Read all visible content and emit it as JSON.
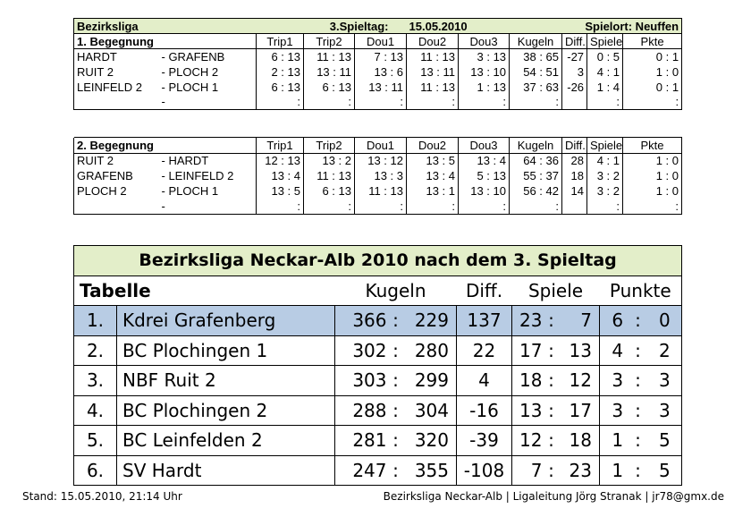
{
  "header": {
    "league": "Bezirksliga",
    "matchday": "3.Spieltag:",
    "date": "15.05.2010",
    "venue": "Spielort: Neuffen"
  },
  "columns": [
    "Trip1",
    "Trip2",
    "Dou1",
    "Dou2",
    "Dou3",
    "Kugeln",
    "Diff.",
    "Spiele",
    "Pkte"
  ],
  "matches": [
    {
      "title": "1. Begegnung",
      "rows": [
        {
          "home": "HARDT",
          "away": "- GRAFENB",
          "trip1": "6 : 13",
          "trip2": "11 : 13",
          "dou1": "7 : 13",
          "dou2": "11 : 13",
          "dou3": "3 : 13",
          "kugeln": "38 : 65",
          "diff": "-27",
          "spiele": "0 : 5",
          "pkte": "0 : 1"
        },
        {
          "home": "RUIT 2",
          "away": "- PLOCH 2",
          "trip1": "2 : 13",
          "trip2": "13 : 11",
          "dou1": "13 : 6",
          "dou2": "13 : 11",
          "dou3": "13 : 10",
          "kugeln": "54 : 51",
          "diff": "3",
          "spiele": "4 : 1",
          "pkte": "1 : 0"
        },
        {
          "home": "LEINFELD 2",
          "away": "- PLOCH 1",
          "trip1": "6 : 13",
          "trip2": "6 : 13",
          "dou1": "13 : 11",
          "dou2": "11 : 13",
          "dou3": "1 : 13",
          "kugeln": "37 : 63",
          "diff": "-26",
          "spiele": "1 : 4",
          "pkte": "0 : 1"
        },
        {
          "home": "",
          "away": "-",
          "trip1": ":",
          "trip2": ":",
          "dou1": ":",
          "dou2": ":",
          "dou3": ":",
          "kugeln": ":",
          "diff": "",
          "spiele": ":",
          "pkte": ":"
        }
      ]
    },
    {
      "title": "2. Begegnung",
      "rows": [
        {
          "home": "RUIT 2",
          "away": "- HARDT",
          "trip1": "12 : 13",
          "trip2": "13 : 2",
          "dou1": "13 : 12",
          "dou2": "13 : 5",
          "dou3": "13 : 4",
          "kugeln": "64 : 36",
          "diff": "28",
          "spiele": "4 : 1",
          "pkte": "1 : 0"
        },
        {
          "home": "GRAFENB",
          "away": "- LEINFELD 2",
          "trip1": "13 : 4",
          "trip2": "11 : 13",
          "dou1": "13 : 3",
          "dou2": "13 : 4",
          "dou3": "5 : 13",
          "kugeln": "55 : 37",
          "diff": "18",
          "spiele": "3 : 2",
          "pkte": "1 : 0"
        },
        {
          "home": "PLOCH 2",
          "away": "- PLOCH 1",
          "trip1": "13 : 5",
          "trip2": "6 : 13",
          "dou1": "11 : 13",
          "dou2": "13 : 1",
          "dou3": "13 : 10",
          "kugeln": "56 : 42",
          "diff": "14",
          "spiele": "3 : 2",
          "pkte": "1 : 0"
        },
        {
          "home": "",
          "away": "-",
          "trip1": ":",
          "trip2": ":",
          "dou1": ":",
          "dou2": ":",
          "dou3": ":",
          "kugeln": ":",
          "diff": "",
          "spiele": ":",
          "pkte": ":"
        }
      ]
    }
  ],
  "standings": {
    "title": "Bezirksliga Neckar-Alb 2010 nach dem 3. Spieltag",
    "label": "Tabelle",
    "cols": {
      "kugeln": "Kugeln",
      "diff": "Diff.",
      "spiele": "Spiele",
      "punkte": "Punkte"
    },
    "separator": ":",
    "rows": [
      {
        "rank": "1.",
        "team": "Kdrei Grafenberg",
        "k1": "366",
        "k2": "229",
        "diff": "137",
        "s1": "23",
        "s2": "7",
        "p1": "6",
        "p2": "0"
      },
      {
        "rank": "2.",
        "team": "BC Plochingen 1",
        "k1": "302",
        "k2": "280",
        "diff": "22",
        "s1": "17",
        "s2": "13",
        "p1": "4",
        "p2": "2"
      },
      {
        "rank": "3.",
        "team": "NBF Ruit 2",
        "k1": "303",
        "k2": "299",
        "diff": "4",
        "s1": "18",
        "s2": "12",
        "p1": "3",
        "p2": "3"
      },
      {
        "rank": "4.",
        "team": "BC Plochingen 2",
        "k1": "288",
        "k2": "304",
        "diff": "-16",
        "s1": "13",
        "s2": "17",
        "p1": "3",
        "p2": "3"
      },
      {
        "rank": "5.",
        "team": "BC Leinfelden 2",
        "k1": "281",
        "k2": "320",
        "diff": "-39",
        "s1": "12",
        "s2": "18",
        "p1": "1",
        "p2": "5"
      },
      {
        "rank": "6.",
        "team": "SV Hardt",
        "k1": "247",
        "k2": "355",
        "diff": "-108",
        "s1": "7",
        "s2": "23",
        "p1": "1",
        "p2": "5"
      }
    ]
  },
  "footer": {
    "left": "Stand: 15.05.2010, 21:14 Uhr",
    "right": "Bezirksliga Neckar-Alb | Ligaleitung Jörg Stranak | jr78@gmx.de"
  }
}
